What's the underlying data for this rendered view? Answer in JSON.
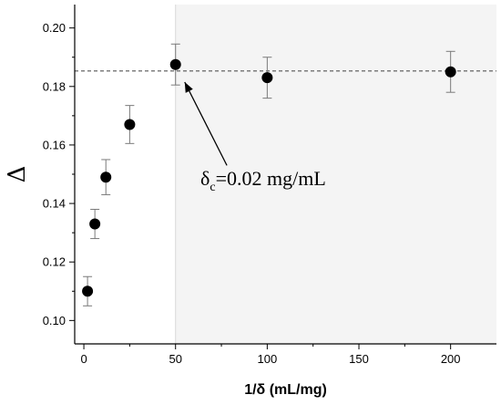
{
  "chart_data": {
    "type": "scatter",
    "title": "",
    "xlabel": "1/δ (mL/mg)",
    "ylabel": "Δ",
    "xlim": [
      -5,
      225
    ],
    "ylim": [
      0.092,
      0.208
    ],
    "xticks": [
      0,
      50,
      100,
      150,
      200
    ],
    "yticks": [
      0.1,
      0.12,
      0.14,
      0.16,
      0.18,
      0.2
    ],
    "xtick_labels": [
      "0",
      "50",
      "100",
      "150",
      "200"
    ],
    "ytick_labels": [
      "0.10",
      "0.12",
      "0.14",
      "0.16",
      "0.18",
      "0.20"
    ],
    "grid": false,
    "series": [
      {
        "x": [
          2,
          6,
          12,
          25,
          50,
          100,
          200
        ],
        "y": [
          0.11,
          0.133,
          0.149,
          0.167,
          0.1875,
          0.183,
          0.185
        ],
        "yerr": [
          0.005,
          0.005,
          0.006,
          0.0065,
          0.007,
          0.007,
          0.007
        ]
      }
    ],
    "reference_line": {
      "y": 0.1853,
      "style": "dashed"
    },
    "shaded_region": {
      "x_from": 50,
      "x_to": 225
    },
    "vertical_line": {
      "x": 50
    },
    "annotation": {
      "text_main": "δ",
      "text_sub": "c",
      "text_rest": "=0.02 mg/mL",
      "arrow_from": [
        78,
        0.153
      ],
      "arrow_to": [
        55,
        0.1815
      ]
    },
    "colors": {
      "marker": "#000000",
      "errorbar": "#7a7a7a",
      "shade": "#f4f4f4",
      "reference_line": "#555555",
      "vertical_line": "#d9d9d9"
    }
  }
}
